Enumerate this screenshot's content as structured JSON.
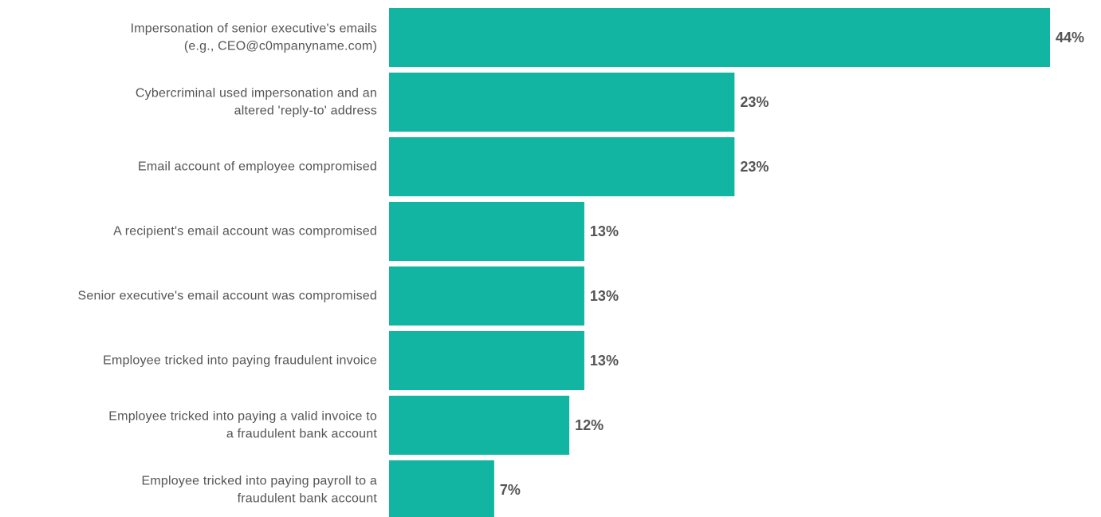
{
  "colors": {
    "bar": "#12b5a2",
    "text": "#555555",
    "background": "#ffffff"
  },
  "chart_data": {
    "type": "bar",
    "orientation": "horizontal",
    "categories": [
      [
        "Impersonation of senior executive's emails",
        "(e.g., CEO@c0mpanyname.com)"
      ],
      [
        "Cybercriminal used impersonation and an",
        "altered 'reply-to' address"
      ],
      [
        "Email account of employee compromised"
      ],
      [
        "A recipient's email account was compromised"
      ],
      [
        "Senior executive's email account was compromised"
      ],
      [
        "Employee tricked into paying fraudulent invoice"
      ],
      [
        "Employee tricked into paying a valid invoice to",
        "a fraudulent bank account"
      ],
      [
        "Employee tricked into paying payroll to a",
        "fraudulent bank account"
      ]
    ],
    "values": [
      44,
      23,
      23,
      13,
      13,
      13,
      12,
      7
    ],
    "value_labels": [
      "44%",
      "23%",
      "23%",
      "13%",
      "13%",
      "13%",
      "12%",
      "7%"
    ],
    "unit": "%",
    "xlim": [
      0,
      44
    ],
    "grid": false,
    "legend": "none"
  }
}
